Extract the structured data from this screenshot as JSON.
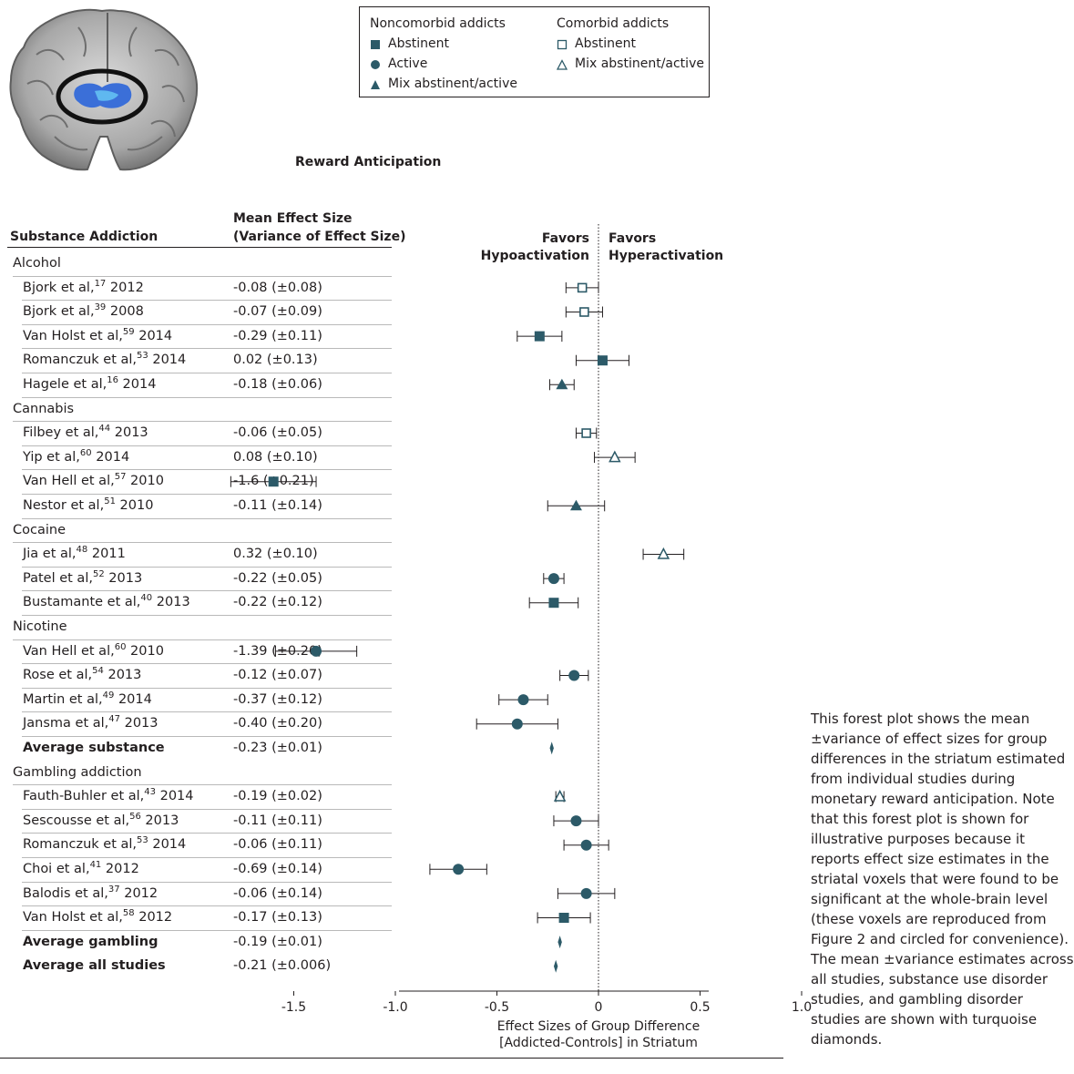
{
  "legend": {
    "noncomorbid_title": "Noncomorbid addicts",
    "comorbid_title": "Comorbid addicts",
    "noncomorbid_items": [
      {
        "symbol": "filled-square",
        "label": "Abstinent"
      },
      {
        "symbol": "filled-circle",
        "label": "Active"
      },
      {
        "symbol": "filled-triangle",
        "label": "Mix abstinent/active"
      }
    ],
    "comorbid_items": [
      {
        "symbol": "open-square",
        "label": "Abstinent"
      },
      {
        "symbol": "open-triangle",
        "label": "Mix abstinent/active"
      }
    ]
  },
  "table": {
    "col1_header": "Substance Addiction",
    "col2_header_line1": "Mean Effect Size",
    "col2_header_line2": "(Variance of Effect Size)"
  },
  "favors": {
    "left_line1": "Favors",
    "left_line2": "Hypoactivation",
    "right_line1": "Favors",
    "right_line2": "Hyperactivation"
  },
  "caption": "This forest plot shows the mean ±variance of effect sizes for group differences in the striatum estimated from individual studies during monetary reward anticipation. Note that this forest plot is shown for illustrative purposes because it reports effect size estimates in the striatal voxels that were found to be significant at the whole-brain level (these voxels are reproduced from Figure 2 and circled for convenience). The mean ±variance estimates across all studies, substance use disorder studies, and gambling disorder studies are shown with turquoise diamonds.",
  "colors": {
    "marker": "#2c5a68",
    "diamond": "#2c5a68",
    "text": "#231f20",
    "row_rule": "#b9b9b9",
    "brain_region": "#3b6fd8"
  },
  "chart_data": {
    "type": "forest",
    "title": "Reward Anticipation",
    "xlabel_line1": "Effect Sizes of Group Difference",
    "xlabel_line2": "[Addicted-Controls] in Striatum",
    "xlim": [
      -1.9,
      1.0
    ],
    "xticks": [
      -1.5,
      -1.0,
      -0.5,
      0,
      0.5,
      1.0
    ],
    "xtick_labels": [
      "-1.5",
      "-1.0",
      "-0.5",
      "0",
      "0.5",
      "1.0"
    ],
    "reference_line": 0,
    "rows": [
      {
        "kind": "group",
        "label": "Alcohol"
      },
      {
        "kind": "study",
        "author": "Bjork et al,",
        "ref": "17",
        "year": "2012",
        "value_text": "-0.08 (±0.08)",
        "effect": -0.08,
        "variance": 0.08,
        "marker": "open-square"
      },
      {
        "kind": "study",
        "author": "Bjork et al,",
        "ref": "39",
        "year": "2008",
        "value_text": "-0.07 (±0.09)",
        "effect": -0.07,
        "variance": 0.09,
        "marker": "open-square"
      },
      {
        "kind": "study",
        "author": "Van Holst et al,",
        "ref": "59",
        "year": "2014",
        "value_text": "-0.29 (±0.11)",
        "effect": -0.29,
        "variance": 0.11,
        "marker": "filled-square"
      },
      {
        "kind": "study",
        "author": "Romanczuk et al,",
        "ref": "53",
        "year": "2014",
        "value_text": "0.02 (±0.13)",
        "effect": 0.02,
        "variance": 0.13,
        "marker": "filled-square"
      },
      {
        "kind": "study",
        "author": "Hagele et al,",
        "ref": "16",
        "year": " 2014",
        "value_text": "-0.18 (±0.06)",
        "effect": -0.18,
        "variance": 0.06,
        "marker": "filled-triangle"
      },
      {
        "kind": "group",
        "label": "Cannabis"
      },
      {
        "kind": "study",
        "author": "Filbey et al,",
        "ref": "44",
        "year": "2013",
        "value_text": "-0.06 (±0.05)",
        "effect": -0.06,
        "variance": 0.05,
        "marker": "open-square"
      },
      {
        "kind": "study",
        "author": "Yip et al,",
        "ref": "60",
        "year": "2014",
        "value_text": "0.08 (±0.10)",
        "effect": 0.08,
        "variance": 0.1,
        "marker": "open-triangle"
      },
      {
        "kind": "study",
        "author": "Van Hell et al,",
        "ref": "57",
        "year": "2010",
        "value_text": "-1.6 (±0.21)",
        "effect": -1.6,
        "variance": 0.21,
        "marker": "filled-square"
      },
      {
        "kind": "study",
        "author": "Nestor et al,",
        "ref": "51",
        "year": "2010",
        "value_text": "-0.11 (±0.14)",
        "effect": -0.11,
        "variance": 0.14,
        "marker": "filled-triangle"
      },
      {
        "kind": "group",
        "label": "Cocaine"
      },
      {
        "kind": "study",
        "author": "Jia et al,",
        "ref": "48",
        "year": "2011",
        "value_text": "0.32 (±0.10)",
        "effect": 0.32,
        "variance": 0.1,
        "marker": "open-triangle"
      },
      {
        "kind": "study",
        "author": "Patel et al,",
        "ref": "52",
        "year": "2013",
        "value_text": "-0.22 (±0.05)",
        "effect": -0.22,
        "variance": 0.05,
        "marker": "filled-circle"
      },
      {
        "kind": "study",
        "author": "Bustamante et al,",
        "ref": "40",
        "year": "2013",
        "value_text": "-0.22 (±0.12)",
        "effect": -0.22,
        "variance": 0.12,
        "marker": "filled-square"
      },
      {
        "kind": "group",
        "label": "Nicotine"
      },
      {
        "kind": "study",
        "author": "Van Hell et al,",
        "ref": "60",
        "year": "2010",
        "value_text": "-1.39 (±0.20)",
        "effect": -1.39,
        "variance": 0.2,
        "marker": "filled-circle"
      },
      {
        "kind": "study",
        "author": "Rose et al,",
        "ref": "54",
        "year": "2013",
        "value_text": "-0.12 (±0.07)",
        "effect": -0.12,
        "variance": 0.07,
        "marker": "filled-circle"
      },
      {
        "kind": "study",
        "author": "Martin et al,",
        "ref": "49",
        "year": "2014",
        "value_text": "-0.37 (±0.12)",
        "effect": -0.37,
        "variance": 0.12,
        "marker": "filled-circle"
      },
      {
        "kind": "study",
        "author": "Jansma et al,",
        "ref": "47",
        "year": "2013",
        "value_text": "-0.40 (±0.20)",
        "effect": -0.4,
        "variance": 0.2,
        "marker": "filled-circle"
      },
      {
        "kind": "average",
        "label": "Average substance",
        "value_text": "-0.23 (±0.01)",
        "effect": -0.23,
        "variance": 0.01,
        "marker": "diamond"
      },
      {
        "kind": "group",
        "label": "Gambling addiction"
      },
      {
        "kind": "study",
        "author": "Fauth-Buhler et al,",
        "ref": "43",
        "year": "2014",
        "value_text": "-0.19 (±0.02)",
        "effect": -0.19,
        "variance": 0.02,
        "marker": "open-triangle"
      },
      {
        "kind": "study",
        "author": "Sescousse et al,",
        "ref": "56",
        "year": "2013",
        "value_text": "-0.11 (±0.11)",
        "effect": -0.11,
        "variance": 0.11,
        "marker": "filled-circle"
      },
      {
        "kind": "study",
        "author": "Romanczuk et al,",
        "ref": "53",
        "year": "2014",
        "value_text": "-0.06 (±0.11)",
        "effect": -0.06,
        "variance": 0.11,
        "marker": "filled-circle"
      },
      {
        "kind": "study",
        "author": "Choi et al,",
        "ref": "41",
        "year": "2012",
        "value_text": "-0.69 (±0.14)",
        "effect": -0.69,
        "variance": 0.14,
        "marker": "filled-circle"
      },
      {
        "kind": "study",
        "author": "Balodis et al,",
        "ref": "37",
        "year": "2012",
        "value_text": "-0.06 (±0.14)",
        "effect": -0.06,
        "variance": 0.14,
        "marker": "filled-circle"
      },
      {
        "kind": "study",
        "author": "Van Holst et al,",
        "ref": "58",
        "year": "2012",
        "value_text": "-0.17 (±0.13)",
        "effect": -0.17,
        "variance": 0.13,
        "marker": "filled-square"
      },
      {
        "kind": "average",
        "label": "Average gambling",
        "value_text": "-0.19 (±0.01)",
        "effect": -0.19,
        "variance": 0.01,
        "marker": "diamond"
      },
      {
        "kind": "average",
        "label": "Average all studies",
        "value_text": "-0.21 (±0.006)",
        "effect": -0.21,
        "variance": 0.006,
        "marker": "diamond"
      }
    ]
  }
}
